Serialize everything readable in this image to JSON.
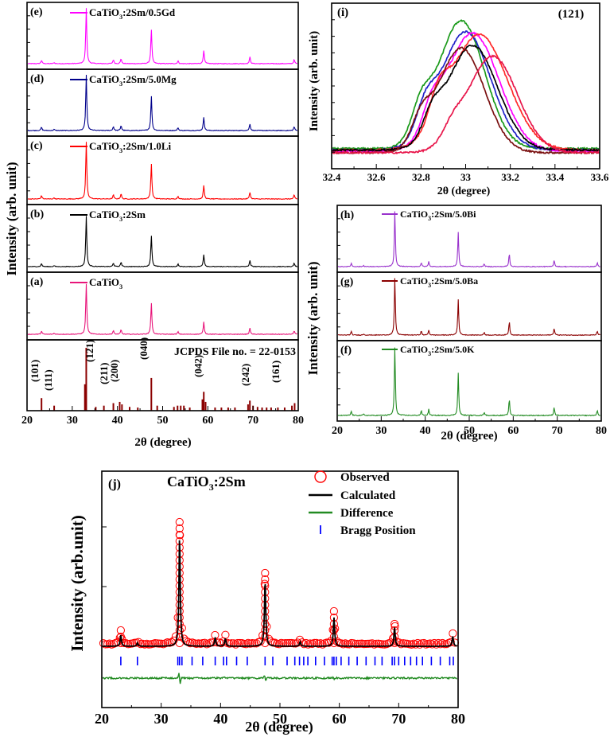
{
  "figure": {
    "x_axis_label": "2θ (degree)",
    "y_axis_label_left": "Intensity (arb. unit)",
    "y_axis_label_right": "Intensity (arb. unit)",
    "y_axis_label_bottom": "Intensity (arb.unit)"
  },
  "chart_data": [
    {
      "id": "left-stack",
      "type": "line",
      "xlabel": "2θ (degree)",
      "ylabel": "Intensity (arb. unit)",
      "xlim": [
        20,
        80
      ],
      "xticks": [
        20,
        30,
        40,
        50,
        60,
        70,
        80
      ],
      "peaks_deg": [
        23.2,
        26.0,
        33.1,
        39.1,
        40.8,
        47.5,
        53.4,
        59.1,
        69.3,
        79.1
      ],
      "peak_rel": [
        0.06,
        0.02,
        1.0,
        0.07,
        0.09,
        0.62,
        0.05,
        0.24,
        0.12,
        0.07
      ],
      "series": [
        {
          "panel": "(e)",
          "name": "CaTiO",
          "sub": "3",
          "tail": ":2Sm/0.5Gd",
          "color": "#ff00ff",
          "scale": 0.95
        },
        {
          "panel": "(d)",
          "name": "CaTiO",
          "sub": "3",
          "tail": ":2Sm/5.0Mg",
          "color": "#00008b",
          "scale": 0.95
        },
        {
          "panel": "(c)",
          "name": "CaTiO",
          "sub": "3",
          "tail": ":2Sm/1.0Li",
          "color": "#ff0000",
          "scale": 0.95
        },
        {
          "panel": "(b)",
          "name": "CaTiO",
          "sub": "3",
          "tail": ":2Sm",
          "color": "#000000",
          "scale": 0.85
        },
        {
          "panel": "(a)",
          "name": "CaTiO",
          "sub": "3",
          "tail": "",
          "color": "#e8157a",
          "scale": 0.85
        }
      ],
      "reference": {
        "title": "JCPDS File no. = 22-0153",
        "color": "#8b0000",
        "lines": [
          {
            "x": 23.2,
            "h": 0.2
          },
          {
            "x": 26.0,
            "h": 0.08
          },
          {
            "x": 32.8,
            "h": 0.42
          },
          {
            "x": 33.1,
            "h": 1.0
          },
          {
            "x": 35.2,
            "h": 0.06
          },
          {
            "x": 37.0,
            "h": 0.08
          },
          {
            "x": 39.1,
            "h": 0.12
          },
          {
            "x": 40.5,
            "h": 0.14
          },
          {
            "x": 41.0,
            "h": 0.1
          },
          {
            "x": 42.7,
            "h": 0.06
          },
          {
            "x": 44.5,
            "h": 0.05
          },
          {
            "x": 47.5,
            "h": 0.52
          },
          {
            "x": 48.8,
            "h": 0.08
          },
          {
            "x": 52.5,
            "h": 0.06
          },
          {
            "x": 53.3,
            "h": 0.08
          },
          {
            "x": 54.0,
            "h": 0.08
          },
          {
            "x": 54.7,
            "h": 0.08
          },
          {
            "x": 56.0,
            "h": 0.05
          },
          {
            "x": 58.8,
            "h": 0.18
          },
          {
            "x": 59.1,
            "h": 0.3
          },
          {
            "x": 59.5,
            "h": 0.14
          },
          {
            "x": 61.6,
            "h": 0.05
          },
          {
            "x": 63.0,
            "h": 0.05
          },
          {
            "x": 64.5,
            "h": 0.05
          },
          {
            "x": 66.0,
            "h": 0.05
          },
          {
            "x": 68.9,
            "h": 0.1
          },
          {
            "x": 69.3,
            "h": 0.16
          },
          {
            "x": 70.0,
            "h": 0.08
          },
          {
            "x": 71.0,
            "h": 0.06
          },
          {
            "x": 72.0,
            "h": 0.05
          },
          {
            "x": 73.0,
            "h": 0.05
          },
          {
            "x": 74.0,
            "h": 0.05
          },
          {
            "x": 75.5,
            "h": 0.05
          },
          {
            "x": 77.0,
            "h": 0.05
          },
          {
            "x": 78.6,
            "h": 0.08
          },
          {
            "x": 79.2,
            "h": 0.12
          }
        ],
        "hkl": [
          {
            "label": "(101)",
            "x": 23.2
          },
          {
            "label": "(111)",
            "x": 26.2
          },
          {
            "label": "(121)",
            "x": 35.3
          },
          {
            "label": "(211)",
            "x": 38.5
          },
          {
            "label": "(200)",
            "x": 40.8
          },
          {
            "label": "(040)",
            "x": 47.3
          },
          {
            "label": "(042)",
            "x": 59.3
          },
          {
            "label": "(242)",
            "x": 69.8
          },
          {
            "label": "(161)",
            "x": 76.5
          }
        ]
      }
    },
    {
      "id": "zoom-121",
      "panel": "(i)",
      "type": "line",
      "title": "(121)",
      "xlabel": "2θ (degree)",
      "ylabel": "Intensity (arb. unit)",
      "xlim": [
        32.4,
        33.6
      ],
      "xticks": [
        32.4,
        32.6,
        32.8,
        33.0,
        33.2,
        33.4,
        33.6
      ],
      "ylim": [
        0,
        1.1
      ],
      "series": [
        {
          "name": "green",
          "color": "#1a9a1a",
          "center": 32.98,
          "width": 0.14,
          "peak": 1.0,
          "base": 0.06,
          "shoulder": 0.22
        },
        {
          "name": "blue",
          "color": "#2020c8",
          "center": 33.0,
          "width": 0.15,
          "peak": 0.92,
          "base": 0.05,
          "shoulder": 0.2
        },
        {
          "name": "magenta",
          "color": "#ff00ff",
          "center": 33.03,
          "width": 0.16,
          "peak": 0.91,
          "base": 0.04,
          "shoulder": 0.18
        },
        {
          "name": "red",
          "color": "#ff2a2a",
          "center": 33.06,
          "width": 0.17,
          "peak": 0.9,
          "base": 0.05,
          "shoulder": 0.22
        },
        {
          "name": "black",
          "color": "#000000",
          "center": 33.03,
          "width": 0.15,
          "peak": 0.82,
          "base": 0.05,
          "shoulder": 0.16
        },
        {
          "name": "dark red",
          "color": "#7a1010",
          "center": 32.98,
          "width": 0.14,
          "peak": 0.8,
          "base": 0.03,
          "shoulder": 0.18
        },
        {
          "name": "crimson",
          "color": "#e8154a",
          "center": 33.12,
          "width": 0.15,
          "peak": 0.74,
          "base": 0.03,
          "shoulder": 0.1
        }
      ]
    },
    {
      "id": "right-stack",
      "type": "line",
      "xlabel": "2θ (degree)",
      "ylabel": "Intensity (arb. unit)",
      "xlim": [
        20,
        80
      ],
      "xticks": [
        20,
        30,
        40,
        50,
        60,
        70,
        80
      ],
      "series": [
        {
          "panel": "(h)",
          "name": "CaTiO",
          "sub": "3",
          "tail": ":2Sm/5.0Bi",
          "color": "#9932cc",
          "scale": 0.95
        },
        {
          "panel": "(g)",
          "name": "CaTiO",
          "sub": "3",
          "tail": ":2Sm/5.0Ba",
          "color": "#8b0000",
          "scale": 0.95
        },
        {
          "panel": "(f)",
          "name": "CaTiO",
          "sub": "3",
          "tail": ":2Sm/5.0K",
          "color": "#228b22",
          "scale": 0.95
        }
      ]
    },
    {
      "id": "rietveld",
      "panel": "(j)",
      "type": "scatter",
      "title": "CaTiO",
      "title_sub": "3",
      "title_tail": ":2Sm",
      "xlabel": "2θ (degree)",
      "ylabel": "Intensity (arb.unit)",
      "xlim": [
        20,
        80
      ],
      "xticks": [
        20,
        30,
        40,
        50,
        60,
        70,
        80
      ],
      "legend": [
        {
          "label": "Observed",
          "color": "#ff0000",
          "kind": "circle"
        },
        {
          "label": "Calculated",
          "color": "#000000",
          "kind": "line"
        },
        {
          "label": "Difference",
          "color": "#228b22",
          "kind": "line"
        },
        {
          "label": "Bragg Position",
          "color": "#0000ff",
          "kind": "bar"
        }
      ],
      "peaks_deg": [
        23.2,
        26.0,
        33.1,
        39.1,
        40.8,
        47.5,
        53.4,
        59.1,
        69.3,
        79.1
      ],
      "peak_rel": [
        0.1,
        0.03,
        1.0,
        0.08,
        0.07,
        0.6,
        0.04,
        0.26,
        0.17,
        0.09
      ],
      "bragg": [
        23.2,
        26.0,
        32.8,
        33.1,
        33.5,
        35.2,
        37.0,
        39.1,
        40.5,
        41.0,
        42.7,
        44.5,
        47.5,
        48.8,
        51.2,
        52.5,
        53.3,
        54.0,
        54.7,
        56.0,
        57.5,
        58.8,
        59.1,
        59.5,
        60.3,
        61.6,
        63.0,
        64.5,
        66.0,
        67.2,
        68.9,
        69.3,
        70.0,
        71.0,
        72.0,
        73.0,
        74.0,
        75.5,
        77.0,
        78.6,
        79.2
      ]
    }
  ]
}
